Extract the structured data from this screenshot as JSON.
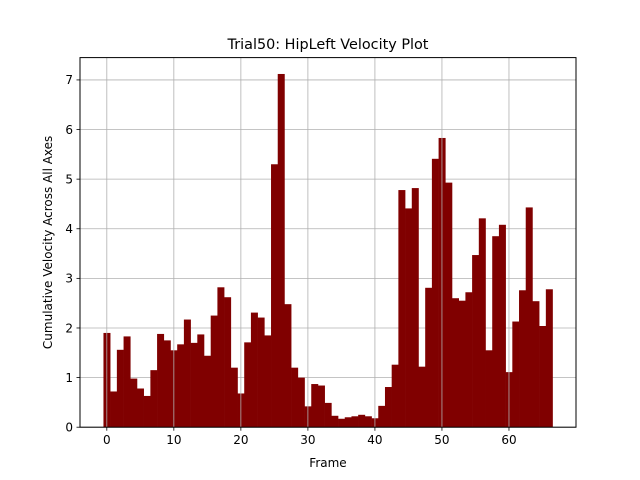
{
  "chart_data": {
    "type": "bar",
    "title": "Trial50: HipLeft Velocity Plot",
    "xlabel": "Frame",
    "ylabel": "Cumulative Velocity Across All Axes",
    "xlim": [
      -4,
      70
    ],
    "ylim": [
      0,
      7.45
    ],
    "xticks": [
      0,
      10,
      20,
      30,
      40,
      50,
      60
    ],
    "yticks": [
      0,
      1,
      2,
      3,
      4,
      5,
      6,
      7
    ],
    "grid": true,
    "bar_color": "#800000",
    "x": [
      0,
      1,
      2,
      3,
      4,
      5,
      6,
      7,
      8,
      9,
      10,
      11,
      12,
      13,
      14,
      15,
      16,
      17,
      18,
      19,
      20,
      21,
      22,
      23,
      24,
      25,
      26,
      27,
      28,
      29,
      30,
      31,
      32,
      33,
      34,
      35,
      36,
      37,
      38,
      39,
      40,
      41,
      42,
      43,
      44,
      45,
      46,
      47,
      48,
      49,
      50,
      51,
      52,
      53,
      54,
      55,
      56,
      57,
      58,
      59,
      60,
      61,
      62,
      63,
      64,
      65,
      66
    ],
    "values": [
      1.9,
      0.72,
      1.56,
      1.83,
      0.98,
      0.78,
      0.63,
      1.15,
      1.88,
      1.75,
      1.55,
      1.67,
      2.17,
      1.7,
      1.87,
      1.44,
      2.25,
      2.82,
      2.62,
      1.2,
      0.68,
      1.71,
      2.31,
      2.21,
      1.85,
      5.3,
      7.12,
      2.48,
      1.2,
      1.0,
      0.42,
      0.87,
      0.84,
      0.49,
      0.23,
      0.17,
      0.2,
      0.22,
      0.25,
      0.22,
      0.18,
      0.43,
      0.81,
      1.26,
      4.78,
      4.41,
      4.82,
      1.22,
      2.81,
      5.41,
      5.83,
      4.93,
      2.6,
      2.55,
      2.72,
      3.47,
      4.21,
      1.55,
      3.85,
      4.08,
      1.11,
      2.13,
      2.76,
      4.43,
      2.54,
      2.04,
      2.78
    ]
  }
}
